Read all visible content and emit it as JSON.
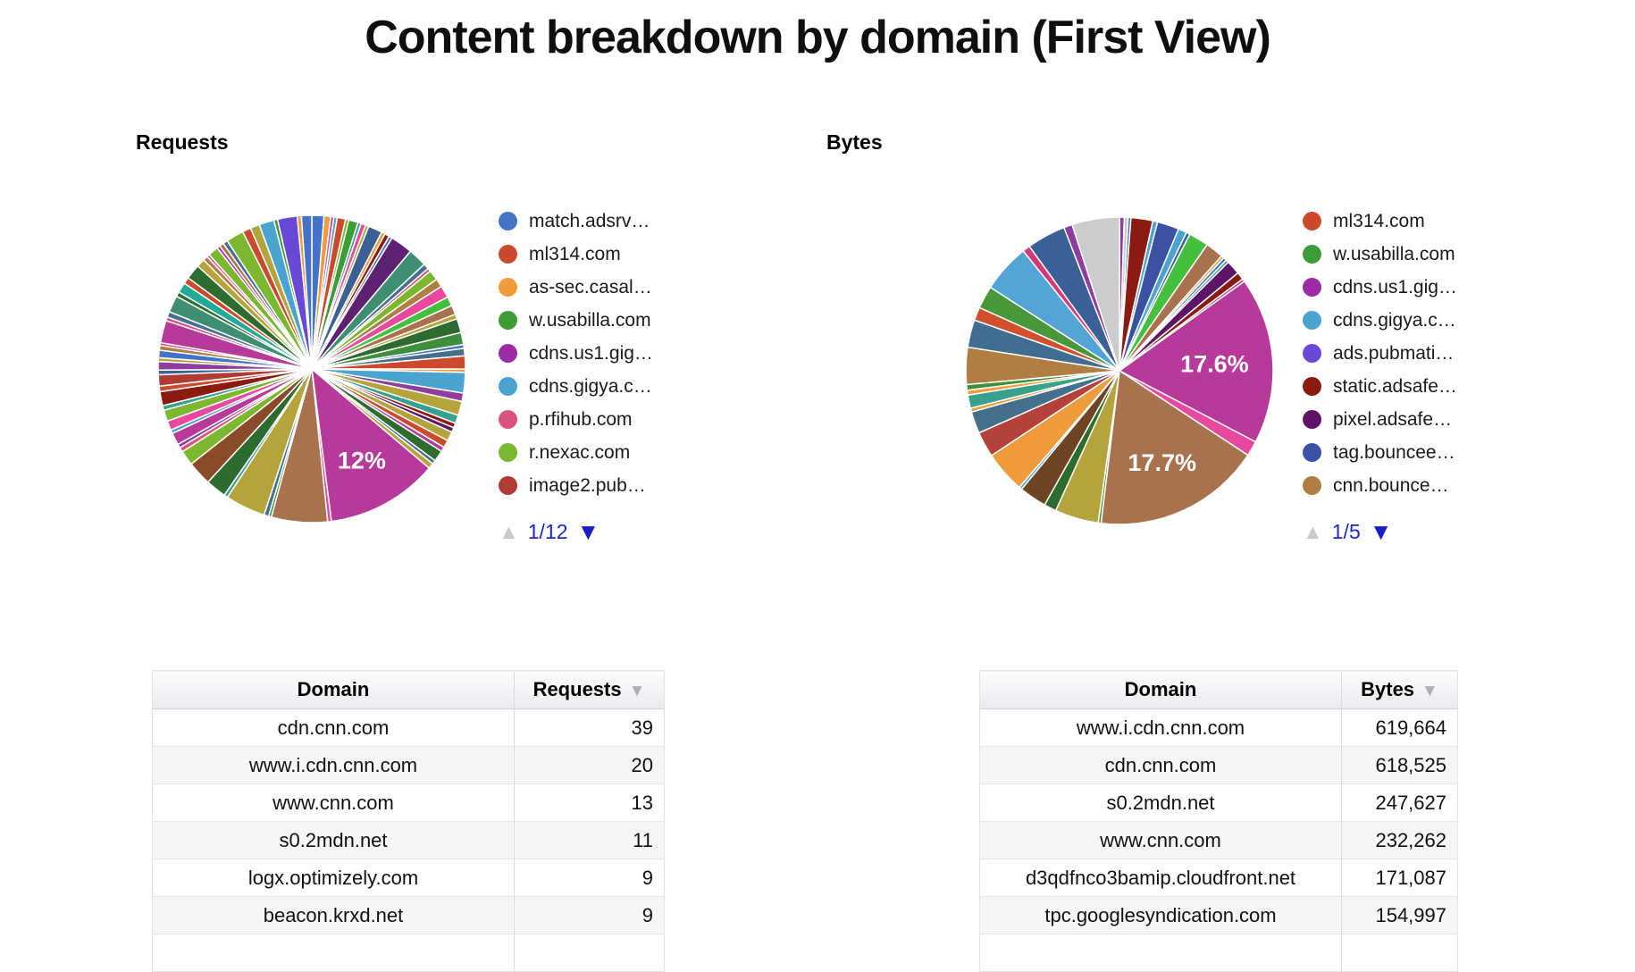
{
  "page": {
    "title": "Content breakdown by domain (First View)"
  },
  "pagination_colors": {
    "inactive_arrow": "#c9c9c9",
    "active_arrow": "#1520c8",
    "label_blue": "#1d27d1"
  },
  "chart_data": [
    {
      "type": "pie",
      "name": "requests_by_domain",
      "title": "Requests",
      "values_are": "percent_share_approx",
      "slice_format": [
        "percent",
        "color",
        "label(optional)",
        "label_radius_factor(optional)"
      ],
      "slices": [
        [
          1.3,
          "#4573C7"
        ],
        [
          0.7,
          "#F09B3C"
        ],
        [
          0.35,
          "#E8489E"
        ],
        [
          0.35,
          "#4BA3CF"
        ],
        [
          0.9,
          "#CB4A2C"
        ],
        [
          0.35,
          "#7CB82F"
        ],
        [
          1.0,
          "#3D9C35"
        ],
        [
          0.35,
          "#37A18E"
        ],
        [
          0.5,
          "#E8489E"
        ],
        [
          0.35,
          "#B5A33B"
        ],
        [
          1.5,
          "#3A6096"
        ],
        [
          0.4,
          "#F09B3C"
        ],
        [
          0.5,
          "#8B1A10"
        ],
        [
          0.35,
          "#4573C7"
        ],
        [
          2.4,
          "#5E2070"
        ],
        [
          2.0,
          "#3E8E71"
        ],
        [
          0.6,
          "#44708E"
        ],
        [
          0.35,
          "#D9537E"
        ],
        [
          1.1,
          "#7CB82F"
        ],
        [
          0.9,
          "#B07D43"
        ],
        [
          1.3,
          "#E8489E"
        ],
        [
          1.0,
          "#44C13C"
        ],
        [
          1.0,
          "#A9724E"
        ],
        [
          0.5,
          "#B5A33B"
        ],
        [
          1.5,
          "#2E6B2E"
        ],
        [
          1.3,
          "#3E8E3E"
        ],
        [
          0.4,
          "#4573C7"
        ],
        [
          0.8,
          "#44708E"
        ],
        [
          1.4,
          "#CB4A2C"
        ],
        [
          0.35,
          "#F09B3C"
        ],
        [
          2.2,
          "#4BA3CF"
        ],
        [
          0.9,
          "#8E3E9E"
        ],
        [
          1.5,
          "#B5A33B"
        ],
        [
          0.9,
          "#37A18E"
        ],
        [
          0.5,
          "#8B1A10"
        ],
        [
          0.5,
          "#5E1566"
        ],
        [
          1.0,
          "#B5A33B"
        ],
        [
          0.8,
          "#CB4A2C"
        ],
        [
          0.5,
          "#B73A9B"
        ],
        [
          1.2,
          "#2E6B2E"
        ],
        [
          0.4,
          "#44708E"
        ],
        [
          0.6,
          "#B5A33B"
        ],
        [
          12.0,
          "#B73A9B",
          "12%",
          0.68
        ],
        [
          0.4,
          "#E8489E"
        ],
        [
          6.0,
          "#A9724E"
        ],
        [
          0.3,
          "#3D9C35"
        ],
        [
          0.5,
          "#44708E"
        ],
        [
          4.3,
          "#B5A33B"
        ],
        [
          0.4,
          "#37A18E"
        ],
        [
          2.2,
          "#2E6B2E"
        ],
        [
          2.6,
          "#8B4A2A"
        ],
        [
          1.6,
          "#7CB82F"
        ],
        [
          0.5,
          "#D9537E"
        ],
        [
          0.4,
          "#8E3E9E"
        ],
        [
          1.3,
          "#B73A9B"
        ],
        [
          0.4,
          "#4BA3CF"
        ],
        [
          1.0,
          "#E8489E"
        ],
        [
          1.2,
          "#7CB82F"
        ],
        [
          0.5,
          "#37A18E"
        ],
        [
          1.5,
          "#8B1A10"
        ],
        [
          0.6,
          "#CB4A2C"
        ],
        [
          1.2,
          "#AF3B34"
        ],
        [
          0.5,
          "#3A6096"
        ],
        [
          0.9,
          "#8E3E9E"
        ],
        [
          0.4,
          "#B5A33B"
        ],
        [
          0.8,
          "#4573C7"
        ],
        [
          0.5,
          "#B07D43"
        ],
        [
          0.3,
          "#E8489E"
        ],
        [
          2.4,
          "#B73A9B"
        ],
        [
          0.4,
          "#D9537E"
        ],
        [
          0.6,
          "#44708E"
        ],
        [
          1.8,
          "#3E8E71"
        ],
        [
          0.5,
          "#2E6B2E"
        ],
        [
          1.1,
          "#22AA99"
        ],
        [
          0.7,
          "#CB4A2C"
        ],
        [
          1.6,
          "#2E6B2E"
        ],
        [
          0.9,
          "#B5A33B"
        ],
        [
          0.5,
          "#B07D43"
        ],
        [
          0.3,
          "#E8489E"
        ],
        [
          1.1,
          "#7CB82F"
        ],
        [
          0.35,
          "#B73A9B"
        ],
        [
          0.45,
          "#A9724E"
        ],
        [
          0.5,
          "#44708E"
        ],
        [
          1.9,
          "#7CB82F"
        ],
        [
          0.9,
          "#CB4A2C"
        ],
        [
          1.0,
          "#B5A33B"
        ],
        [
          1.6,
          "#4BA3CF"
        ],
        [
          0.4,
          "#3D9C35"
        ],
        [
          2.1,
          "#6A48D7"
        ],
        [
          0.45,
          "#F09B3C"
        ],
        [
          1.1,
          "#4573C7"
        ]
      ],
      "labeled_slices": [
        {
          "label": "12%",
          "color": "#B73A9B"
        }
      ],
      "legend": [
        {
          "label": "match.adsrv…",
          "color": "#4573C7"
        },
        {
          "label": "ml314.com",
          "color": "#CB4A2C"
        },
        {
          "label": "as-sec.casal…",
          "color": "#F09B3C"
        },
        {
          "label": "w.usabilla.com",
          "color": "#3D9C35"
        },
        {
          "label": "cdns.us1.gig…",
          "color": "#9C2BA6"
        },
        {
          "label": "cdns.gigya.c…",
          "color": "#4BA3CF"
        },
        {
          "label": "p.rfihub.com",
          "color": "#D9537E"
        },
        {
          "label": "r.nexac.com",
          "color": "#7CB82F"
        },
        {
          "label": "image2.pub…",
          "color": "#AF3B34"
        }
      ],
      "pagination": "1/12"
    },
    {
      "type": "pie",
      "name": "bytes_by_domain",
      "title": "Bytes",
      "values_are": "percent_share_approx",
      "slice_format": [
        "percent",
        "color",
        "label(optional)",
        "label_radius_factor(optional)"
      ],
      "slices": [
        [
          0.5,
          "#8E3E9E"
        ],
        [
          0.4,
          "#CCCCCC"
        ],
        [
          0.3,
          "#4573C7"
        ],
        [
          2.3,
          "#8B1A10"
        ],
        [
          0.5,
          "#4BA3CF"
        ],
        [
          2.3,
          "#3B51A3"
        ],
        [
          0.9,
          "#4BA3CF"
        ],
        [
          0.4,
          "#3A6096"
        ],
        [
          2.1,
          "#44C13C"
        ],
        [
          1.9,
          "#A9724E"
        ],
        [
          0.3,
          "#F09B3C"
        ],
        [
          0.35,
          "#4573C7"
        ],
        [
          0.3,
          "#37A18E"
        ],
        [
          1.5,
          "#5E1566"
        ],
        [
          0.8,
          "#8B1A10"
        ],
        [
          0.3,
          "#B73A9B"
        ],
        [
          17.6,
          "#B73A9B",
          "17.6%",
          0.62
        ],
        [
          1.6,
          "#E8489E"
        ],
        [
          17.7,
          "#A9724E",
          "17.7%",
          0.66
        ],
        [
          0.3,
          "#3D9C35"
        ],
        [
          4.6,
          "#B5A33B"
        ],
        [
          1.3,
          "#2E6B2E"
        ],
        [
          2.9,
          "#6E4423"
        ],
        [
          0.3,
          "#4BA3CF"
        ],
        [
          4.4,
          "#F09B3C"
        ],
        [
          2.7,
          "#B5423A"
        ],
        [
          2.3,
          "#44708E"
        ],
        [
          0.4,
          "#F09B3C"
        ],
        [
          1.4,
          "#37A18E"
        ],
        [
          0.5,
          "#F09B3C"
        ],
        [
          0.6,
          "#3E8E3E"
        ],
        [
          3.9,
          "#B07D43"
        ],
        [
          2.9,
          "#3F6E90"
        ],
        [
          1.4,
          "#D14F2D"
        ],
        [
          2.4,
          "#48973B"
        ],
        [
          5.1,
          "#54A3D5"
        ],
        [
          0.8,
          "#D23B77"
        ],
        [
          4.1,
          "#3A6096"
        ],
        [
          0.9,
          "#8E3E9E"
        ],
        [
          5.0,
          "#CCCCCC"
        ]
      ],
      "labeled_slices": [
        {
          "label": "17.6%",
          "color": "#B73A9B"
        },
        {
          "label": "17.7%",
          "color": "#A9724E"
        }
      ],
      "legend": [
        {
          "label": "ml314.com",
          "color": "#CB4A2C"
        },
        {
          "label": "w.usabilla.com",
          "color": "#3D9C35"
        },
        {
          "label": "cdns.us1.gig…",
          "color": "#9C2BA6"
        },
        {
          "label": "cdns.gigya.c…",
          "color": "#4BA3CF"
        },
        {
          "label": "ads.pubmati…",
          "color": "#6A48D7"
        },
        {
          "label": "static.adsafe…",
          "color": "#8B1A10"
        },
        {
          "label": "pixel.adsafe…",
          "color": "#5E1566"
        },
        {
          "label": "tag.bouncee…",
          "color": "#3B51A3"
        },
        {
          "label": "cnn.bounce…",
          "color": "#B07D43"
        }
      ],
      "pagination": "1/5"
    }
  ],
  "tables": [
    {
      "name": "requests_by_domain_table",
      "columns": [
        "Domain",
        "Requests"
      ],
      "sort": {
        "column": "Requests",
        "direction": "desc"
      },
      "rows": [
        [
          "cdn.cnn.com",
          "39"
        ],
        [
          "www.i.cdn.cnn.com",
          "20"
        ],
        [
          "www.cnn.com",
          "13"
        ],
        [
          "s0.2mdn.net",
          "11"
        ],
        [
          "logx.optimizely.com",
          "9"
        ],
        [
          "beacon.krxd.net",
          "9"
        ]
      ],
      "more_rows_clipped": true
    },
    {
      "name": "bytes_by_domain_table",
      "columns": [
        "Domain",
        "Bytes"
      ],
      "sort": {
        "column": "Bytes",
        "direction": "desc"
      },
      "rows": [
        [
          "www.i.cdn.cnn.com",
          "619,664"
        ],
        [
          "cdn.cnn.com",
          "618,525"
        ],
        [
          "s0.2mdn.net",
          "247,627"
        ],
        [
          "www.cnn.com",
          "232,262"
        ],
        [
          "d3qdfnco3bamip.cloudfront.net",
          "171,087"
        ],
        [
          "tpc.googlesyndication.com",
          "154,997"
        ]
      ],
      "more_rows_clipped": true
    }
  ]
}
